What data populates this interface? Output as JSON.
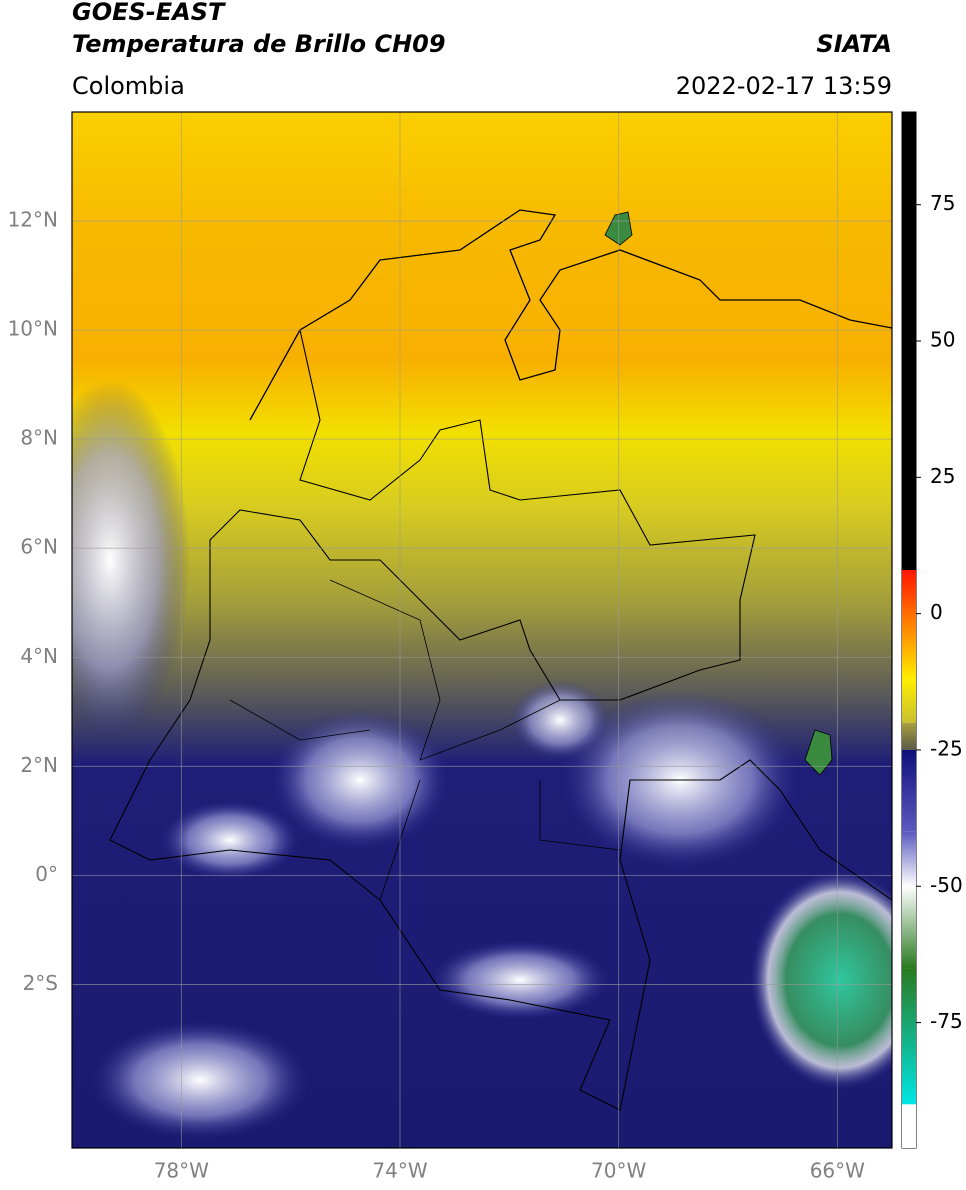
{
  "header": {
    "title_line1": "GOES-EAST",
    "title_line2": "Temperatura de Brillo CH09",
    "source": "SIATA",
    "region": "Colombia",
    "datetime": "2022-02-17 13:59"
  },
  "map": {
    "xlim": [
      -80,
      -65
    ],
    "ylim": [
      -5,
      14
    ],
    "lat_ticks": [
      {
        "value": 12,
        "label": "12°N"
      },
      {
        "value": 10,
        "label": "10°N"
      },
      {
        "value": 8,
        "label": "8°N"
      },
      {
        "value": 6,
        "label": "6°N"
      },
      {
        "value": 4,
        "label": "4°N"
      },
      {
        "value": 2,
        "label": "2°N"
      },
      {
        "value": 0,
        "label": "0°"
      },
      {
        "value": -2,
        "label": "2°S"
      }
    ],
    "lon_ticks": [
      {
        "value": -78,
        "label": "78°W"
      },
      {
        "value": -74,
        "label": "74°W"
      },
      {
        "value": -70,
        "label": "70°W"
      },
      {
        "value": -66,
        "label": "66°W"
      }
    ]
  },
  "colorbar": {
    "range": [
      -98,
      92
    ],
    "ticks": [
      75,
      50,
      25,
      0,
      -25,
      -50,
      -75
    ],
    "segments": [
      {
        "from": 8,
        "to": 92,
        "low": "#000000",
        "high": "#000000"
      },
      {
        "from": -12,
        "to": 8,
        "low": "#ffee00",
        "high": "#ff1500"
      },
      {
        "from": -20,
        "to": -12,
        "low": "#c8c030",
        "high": "#ffee00"
      },
      {
        "from": -25,
        "to": -20,
        "low": "#5a5a48",
        "high": "#a8a040"
      },
      {
        "from": -40,
        "to": -25,
        "low": "#5a5ac0",
        "high": "#10107a"
      },
      {
        "from": -50,
        "to": -40,
        "low": "#ffffff",
        "high": "#5a5ac0"
      },
      {
        "from": -65,
        "to": -50,
        "low": "#2a7a20",
        "high": "#ffffff"
      },
      {
        "from": -90,
        "to": -65,
        "low": "#00e6e6",
        "high": "#2a7a20"
      },
      {
        "from": -98,
        "to": -90,
        "low": "#ffffff",
        "high": "#ffffff"
      }
    ]
  }
}
